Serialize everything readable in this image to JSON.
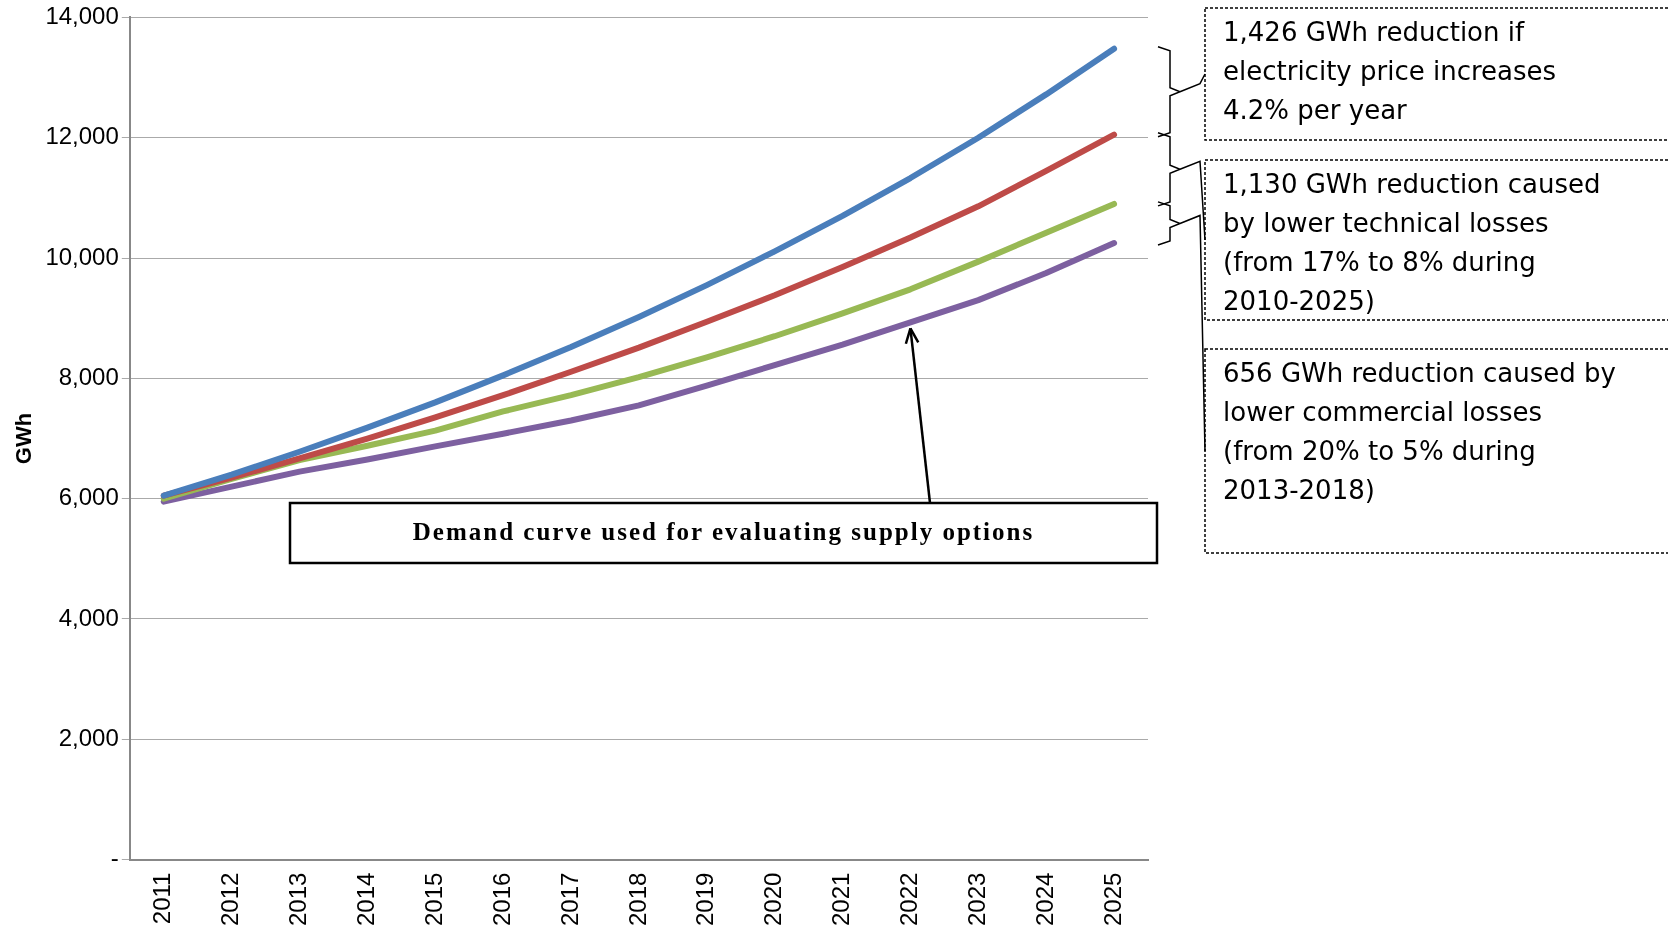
{
  "chart_data": {
    "type": "line",
    "ylabel": "GWh",
    "categories": [
      "2011",
      "2012",
      "2013",
      "2014",
      "2015",
      "2016",
      "2017",
      "2018",
      "2019",
      "2020",
      "2021",
      "2022",
      "2023",
      "2024",
      "2025"
    ],
    "series": [
      {
        "color": "#4a7ebb",
        "values": [
          6050,
          6400,
          6780,
          7180,
          7600,
          8050,
          8520,
          9020,
          9550,
          10110,
          10700,
          11330,
          12000,
          12720,
          13480
        ]
      },
      {
        "color": "#be4b48",
        "values": [
          6050,
          6350,
          6670,
          7000,
          7350,
          7720,
          8110,
          8510,
          8940,
          9380,
          9850,
          10340,
          10860,
          11450,
          12050
        ]
      },
      {
        "color": "#98b954",
        "values": [
          6000,
          6330,
          6640,
          6880,
          7130,
          7450,
          7720,
          8020,
          8350,
          8700,
          9080,
          9480,
          9940,
          10420,
          10900
        ]
      },
      {
        "color": "#7d60a0",
        "values": [
          5950,
          6200,
          6450,
          6650,
          6870,
          7080,
          7300,
          7550,
          7880,
          8220,
          8560,
          8930,
          9300,
          9750,
          10250
        ]
      }
    ],
    "ylim": [
      0,
      14000
    ],
    "yticks": [
      {
        "value": 0,
        "label": "-"
      },
      {
        "value": 2000,
        "label": "2,000"
      },
      {
        "value": 4000,
        "label": "4,000"
      },
      {
        "value": 6000,
        "label": "6,000"
      },
      {
        "value": 8000,
        "label": "8,000"
      },
      {
        "value": 10000,
        "label": "10,000"
      },
      {
        "value": 12000,
        "label": "12,000"
      },
      {
        "value": 14000,
        "label": "14,000"
      }
    ],
    "grid": "y",
    "legend": false,
    "marker": "none",
    "line_style": "solid",
    "annotations": [
      "1,426 GWh reduction if electricity price increases 4.2% per year",
      "1,130 GWh reduction caused by lower technical losses (from 17% to 8% during 2010-2025)",
      "656 GWh reduction caused by lower commercial losses (from 20% to 5% during 2013-2018)",
      {
        "text": "Demand curve used for evaluating supply options",
        "x": "2022",
        "y": 8930
      }
    ]
  }
}
